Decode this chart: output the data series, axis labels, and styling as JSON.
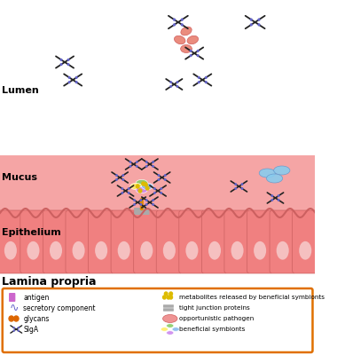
{
  "figsize": [
    3.89,
    4.0
  ],
  "dpi": 100,
  "bg_color": "#ffffff",
  "mucus_color": "#f5a5a5",
  "epithelium_color": "#f08080",
  "cell_color": "#f08080",
  "cell_oval_color": "#f5c0c0",
  "label_lumen": "Lumen",
  "label_mucus": "Mucus",
  "label_epithelium": "Epithelium",
  "label_lamina": "Lamina propria",
  "label_fontsize": 8,
  "lamina_fontsize": 9,
  "legend_items_left": [
    "antigen",
    "secretory component",
    "glycans",
    "SIgA"
  ],
  "legend_items_right": [
    "metabolites released by beneficial symbionts",
    "tight junction proteins",
    "opportunistic pathogen",
    "beneficial symbionts"
  ],
  "legend_border_color": "#e07000",
  "antigen_color": "#cc66cc",
  "secretory_color": "#6666cc",
  "glycans_color": "#dd6600",
  "siga_color": "#222222",
  "metabolites_color": "#ddbb00",
  "tight_junction_color": "#aaaaaa",
  "pathogen_color": "#ee8888",
  "beneficial_colors": [
    "#88cc66",
    "#ffee66",
    "#cc88ee",
    "#88bbee"
  ],
  "wavy_color": "#cc6060",
  "cell_border_color": "#cc6060",
  "blue_symbiont_color": "#88ccee",
  "blue_symbiont_border": "#6699cc",
  "orange_dot_color": "#dd8800",
  "antigen_lumen_color": "#e88070",
  "antigen_lumen_border": "#cc5555"
}
